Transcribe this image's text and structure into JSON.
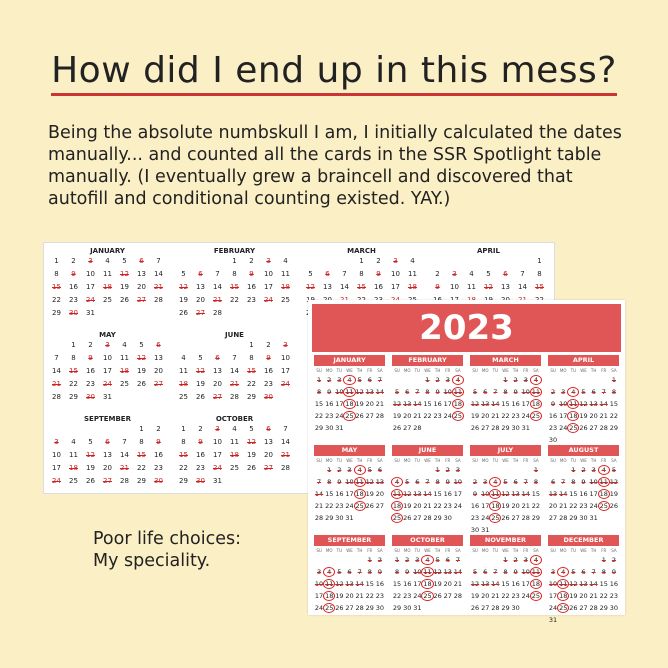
{
  "title": "How did I end up in this mess?",
  "intro": "Being the absolute numbskull I am, I initially calculated the dates manually... and counted all the cards in the SSR Spotlight table manually. (I eventually grew a braincell and discovered that autofill and conditional counting existed. YAY.)",
  "quote_line1": "Poor life choices:",
  "quote_line2": "My speciality.",
  "old_calendar": {
    "months": [
      "JANUARY",
      "FEBRUARY",
      "MARCH",
      "APRIL",
      "MAY",
      "JUNE",
      "SEPTEMBER",
      "OCTOBER"
    ]
  },
  "new_calendar": {
    "year": "2023",
    "weekdays": [
      "SU",
      "MO",
      "TU",
      "WE",
      "TH",
      "FR",
      "SA"
    ],
    "months": [
      "JANUARY",
      "FEBRUARY",
      "MARCH",
      "APRIL",
      "MAY",
      "JUNE",
      "JULY",
      "AUGUST",
      "SEPTEMBER",
      "OCTOBER",
      "NOVEMBER",
      "DECEMBER"
    ]
  },
  "colors": {
    "background": "#fbefc6",
    "accent": "#e05555",
    "ink": "#d22233"
  }
}
